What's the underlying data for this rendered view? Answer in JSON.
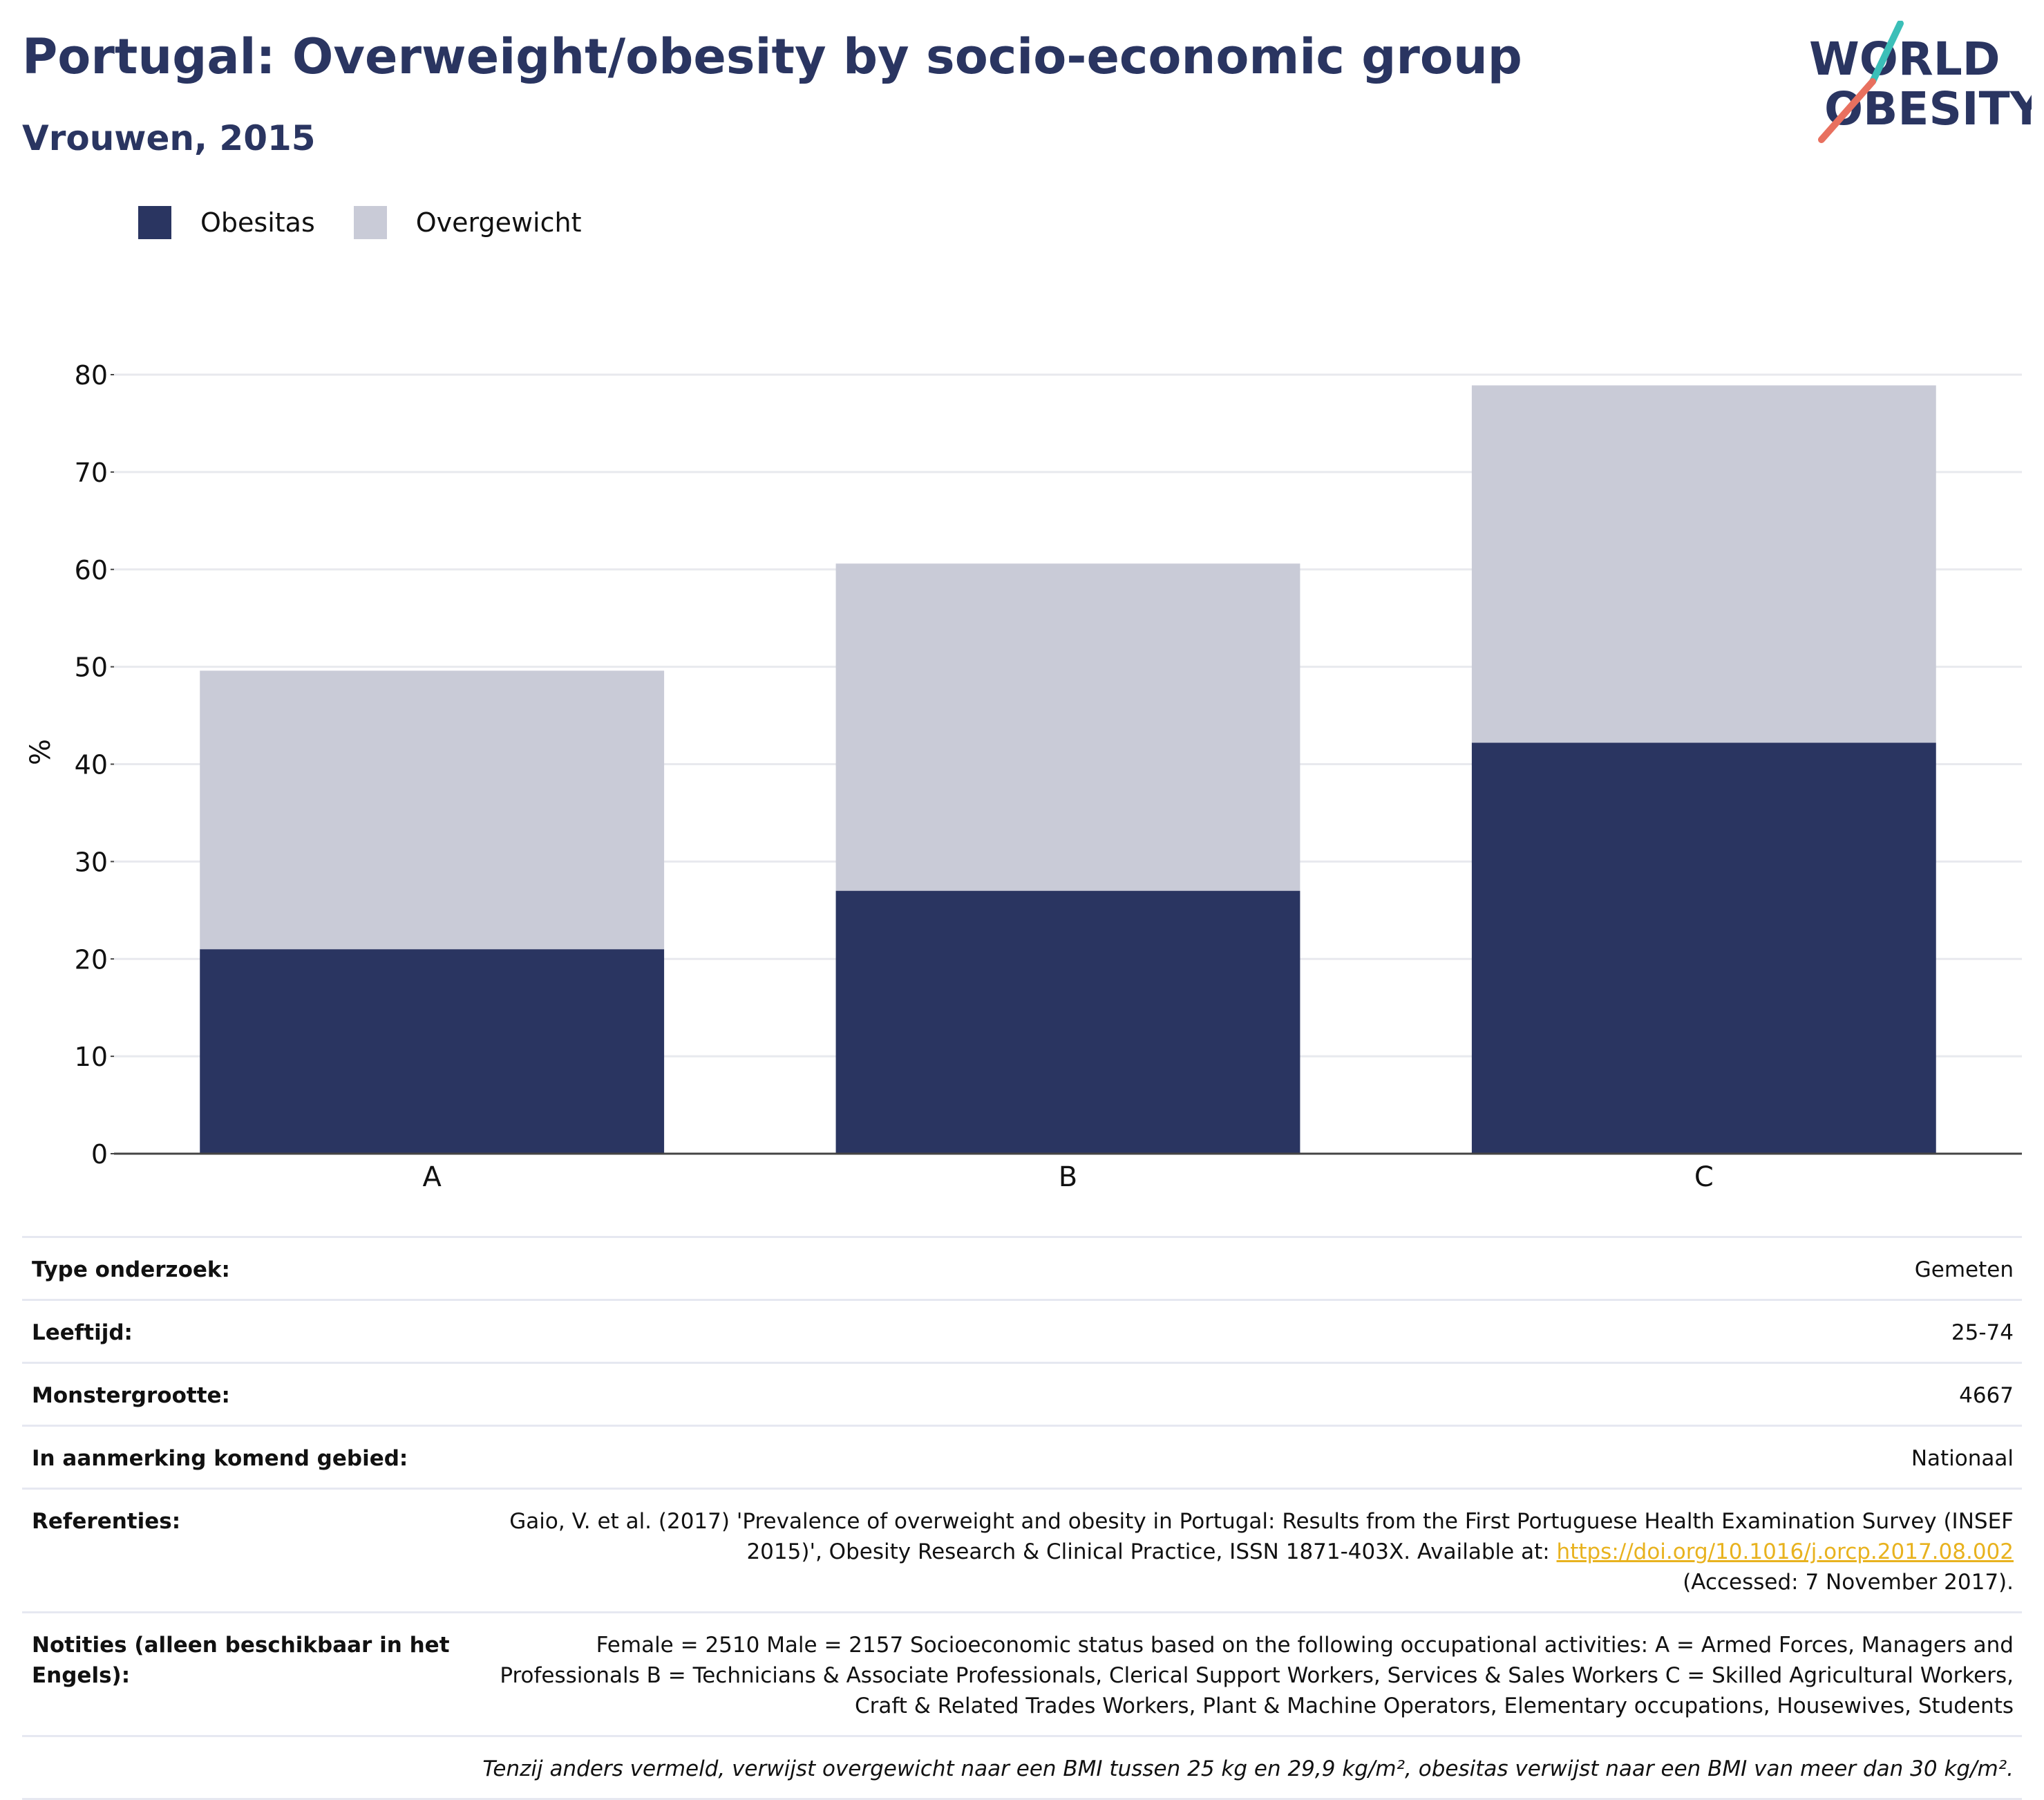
{
  "header": {
    "title": "Portugal: Overweight/obesity by socio-economic group",
    "subtitle": "Vrouwen, 2015"
  },
  "logo": {
    "line1": "WORLD",
    "line2": "OBESITY"
  },
  "colors": {
    "obesity": "#2a3561",
    "overweight": "#c9cbd7",
    "accent_teal": "#3bbfb8",
    "accent_coral": "#e8705f",
    "link": "#e8b21e"
  },
  "chart_data": {
    "type": "bar",
    "stacked": true,
    "categories": [
      "A",
      "B",
      "C"
    ],
    "series": [
      {
        "name": "Obesitas",
        "values": [
          21,
          27,
          42.2
        ]
      },
      {
        "name": "Overgewicht",
        "values": [
          28.6,
          33.6,
          36.7
        ]
      }
    ],
    "title": "",
    "xlabel": "",
    "ylabel": "%",
    "ylim": [
      0,
      80
    ],
    "yticks": [
      0,
      10,
      20,
      30,
      40,
      50,
      60,
      70,
      80
    ],
    "grid": true,
    "legend": "top-left"
  },
  "info": {
    "rows": [
      {
        "label": "Type onderzoek:",
        "value": "Gemeten"
      },
      {
        "label": "Leeftijd:",
        "value": "25-74"
      },
      {
        "label": "Monstergrootte:",
        "value": "4667"
      },
      {
        "label": "In aanmerking komend gebied:",
        "value": "Nationaal"
      }
    ],
    "references_label": "Referenties:",
    "references_text1": "Gaio, V. et al. (2017) 'Prevalence of overweight and obesity in Portugal: Results from the First Portuguese Health Examination Survey (INSEF 2015)', Obesity Research & Clinical Practice, ISSN 1871-403X. Available at: ",
    "references_link": "https://doi.org/10.1016/j.orcp.2017.08.002",
    "references_text2": " (Accessed: 7 November 2017).",
    "notes_label": "Notities (alleen beschikbaar in het Engels):",
    "notes_text": "Female = 2510 Male = 2157 Socioeconomic status based on the following occupational activities: A = Armed Forces, Managers and Professionals B = Technicians & Associate Professionals, Clerical Support Workers, Services & Sales Workers C = Skilled Agricultural Workers, Craft & Related Trades Workers, Plant & Machine Operators, Elementary occupations, Housewives, Students",
    "footnote": "Tenzij anders vermeld, verwijst overgewicht naar een BMI tussen 25 kg en 29,9 kg/m², obesitas verwijst naar een BMI van meer dan 30 kg/m²."
  }
}
